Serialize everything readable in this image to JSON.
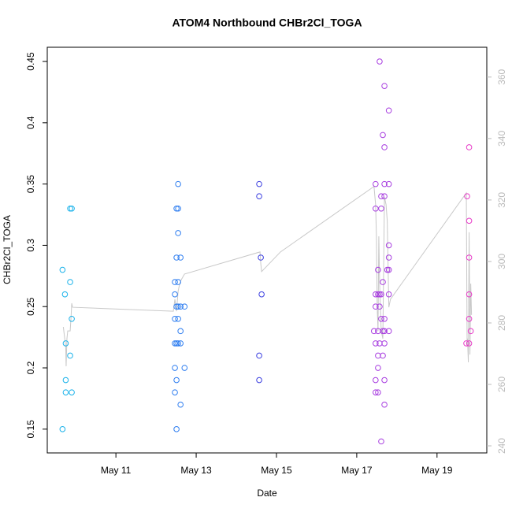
{
  "chart_data": {
    "type": "scatter",
    "title": "ATOM4 Northbound CHBr2Cl_TOGA",
    "xlabel": "Date",
    "ylabel": "CHBr2Cl_TOGA",
    "xlim": [
      9.29,
      20.24
    ],
    "xticks": [
      {
        "value": 11,
        "label": "May 11"
      },
      {
        "value": 13,
        "label": "May 13"
      },
      {
        "value": 15,
        "label": "May 15"
      },
      {
        "value": 17,
        "label": "May 17"
      },
      {
        "value": 19,
        "label": "May 19"
      }
    ],
    "ylim": [
      0.1306,
      0.4616
    ],
    "yticks": [
      0.15,
      0.2,
      0.25,
      0.3,
      0.35,
      0.4,
      0.45
    ],
    "y2lim": [
      237.7,
      369.7
    ],
    "y2ticks": [
      240,
      260,
      280,
      300,
      320,
      340,
      360
    ],
    "y2color": "#bbbbbb",
    "series": [
      {
        "color": "#1ab2ea",
        "x": [
          9.67,
          9.73,
          9.75,
          9.75,
          9.75,
          9.67,
          9.86,
          9.9,
          9.86,
          9.9,
          9.86,
          9.9
        ],
        "values": [
          0.28,
          0.26,
          0.22,
          0.19,
          0.18,
          0.15,
          0.33,
          0.33,
          0.27,
          0.24,
          0.21,
          0.18
        ]
      },
      {
        "color": "#2f7ef0",
        "x": [
          12.55,
          12.51,
          12.55,
          12.55,
          12.51,
          12.61,
          12.47,
          12.55,
          12.47,
          12.51,
          12.55,
          12.61,
          12.71,
          12.47,
          12.55,
          12.61,
          12.47,
          12.51,
          12.55,
          12.61,
          12.47,
          12.71,
          12.51,
          12.47,
          12.61,
          12.51
        ],
        "values": [
          0.35,
          0.33,
          0.33,
          0.31,
          0.29,
          0.29,
          0.27,
          0.27,
          0.26,
          0.25,
          0.25,
          0.25,
          0.25,
          0.24,
          0.24,
          0.23,
          0.22,
          0.22,
          0.22,
          0.22,
          0.2,
          0.2,
          0.19,
          0.18,
          0.17,
          0.15
        ]
      },
      {
        "color": "#3a3ee0",
        "x": [
          14.57,
          14.57,
          14.61,
          14.63,
          14.57,
          14.57
        ],
        "values": [
          0.35,
          0.34,
          0.29,
          0.26,
          0.21,
          0.19
        ]
      },
      {
        "color": "#a83ee0",
        "x": [
          17.57,
          17.69,
          17.8,
          17.65,
          17.69,
          17.47,
          17.69,
          17.8,
          17.61,
          17.69,
          17.47,
          17.61,
          17.8,
          17.8,
          17.53,
          17.76,
          17.8,
          17.65,
          17.47,
          17.53,
          17.57,
          17.61,
          17.8,
          17.47,
          17.57,
          17.61,
          17.69,
          17.43,
          17.53,
          17.65,
          17.69,
          17.8,
          17.47,
          17.57,
          17.69,
          17.53,
          17.65,
          17.53,
          17.47,
          17.69,
          17.47,
          17.53,
          17.69,
          17.61
        ],
        "values": [
          0.45,
          0.43,
          0.41,
          0.39,
          0.38,
          0.35,
          0.35,
          0.35,
          0.34,
          0.34,
          0.33,
          0.33,
          0.3,
          0.29,
          0.28,
          0.28,
          0.28,
          0.27,
          0.26,
          0.26,
          0.26,
          0.26,
          0.26,
          0.25,
          0.25,
          0.24,
          0.24,
          0.23,
          0.23,
          0.23,
          0.23,
          0.23,
          0.22,
          0.22,
          0.22,
          0.21,
          0.21,
          0.2,
          0.19,
          0.19,
          0.18,
          0.18,
          0.17,
          0.14
        ]
      },
      {
        "color": "#e83cc8",
        "x": [
          19.8,
          19.75,
          19.8,
          19.8,
          19.8,
          19.8,
          19.84,
          19.73,
          19.8
        ],
        "values": [
          0.38,
          0.34,
          0.32,
          0.29,
          0.26,
          0.24,
          0.23,
          0.22,
          0.22
        ]
      },
      {
        "type": "line",
        "axis": "y2",
        "color": "#c8c8c8",
        "x": [
          9.69,
          9.75,
          9.76,
          9.78,
          9.8,
          9.86,
          9.88,
          9.9,
          9.92,
          12.43,
          12.47,
          12.51,
          12.55,
          12.59,
          12.63,
          12.71,
          14.59,
          14.61,
          14.63,
          15.1,
          17.43,
          17.47,
          17.49,
          17.51,
          17.53,
          17.55,
          17.57,
          17.61,
          17.65,
          17.69,
          17.73,
          17.76,
          17.8,
          17.84,
          19.73,
          19.75,
          19.76,
          19.78,
          19.8,
          19.82,
          19.84,
          19.86
        ],
        "values": [
          278.7,
          272.3,
          265.9,
          274.9,
          277.4,
          277.4,
          281.3,
          286.4,
          285.1,
          283.8,
          287.7,
          283.8,
          290.3,
          292.8,
          294.1,
          295.9,
          303.1,
          299.2,
          296.7,
          303.1,
          324.4,
          318.5,
          308.2,
          285.1,
          277.4,
          308.2,
          292.8,
          277.4,
          274.9,
          321.0,
          318.5,
          313.3,
          285.1,
          287.7,
          322.3,
          272.3,
          274.9,
          267.2,
          309.5,
          269.7,
          292.8,
          282.6
        ]
      }
    ]
  }
}
